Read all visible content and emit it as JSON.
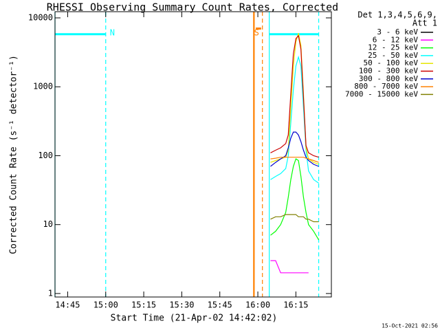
{
  "chart_data": {
    "type": "line",
    "title": "RHESSI Observing Summary Count Rates, Corrected",
    "xlabel": "Start Time (21-Apr-02 14:42:02)",
    "ylabel": "Corrected Count Rate (s⁻¹ detector⁻¹)",
    "legend_title": [
      "Det 1,3,4,5,6,9,",
      "Att 1"
    ],
    "footer": "15-Oct-2021 02:56",
    "log_y": true,
    "xlim": [
      880,
      989
    ],
    "ylim": [
      0.89,
      12300
    ],
    "xticks": [
      {
        "value": 885,
        "label": "14:45"
      },
      {
        "value": 900,
        "label": "15:00"
      },
      {
        "value": 915,
        "label": "15:15"
      },
      {
        "value": 930,
        "label": "15:30"
      },
      {
        "value": 945,
        "label": "15:45"
      },
      {
        "value": 960,
        "label": "16:00"
      },
      {
        "value": 975,
        "label": "16:15"
      }
    ],
    "yticks": [
      1,
      10,
      100,
      1000,
      10000
    ],
    "x": [
      965,
      967,
      969,
      971,
      972,
      973,
      974,
      975,
      976,
      977,
      978,
      979,
      980,
      982,
      984
    ],
    "series": [
      {
        "name": "3 - 6 keV",
        "color": "#000000",
        "values": [
          null,
          null,
          null,
          null,
          null,
          null,
          null,
          null,
          null,
          null,
          null,
          null,
          null,
          null,
          null
        ]
      },
      {
        "name": "6 - 12 keV",
        "color": "#ff00ff",
        "values": [
          3,
          3,
          2,
          2,
          2,
          2,
          2,
          2,
          2,
          2,
          2,
          2,
          2,
          null,
          null
        ]
      },
      {
        "name": "12 - 25 keV",
        "color": "#00ff00",
        "values": [
          7,
          8,
          10,
          15,
          25,
          45,
          70,
          90,
          85,
          50,
          25,
          15,
          10,
          8,
          6
        ]
      },
      {
        "name": "25 - 50 keV",
        "color": "#00ffff",
        "values": [
          45,
          50,
          55,
          65,
          100,
          300,
          900,
          2000,
          2700,
          2000,
          500,
          120,
          60,
          45,
          40
        ]
      },
      {
        "name": "50 - 100 keV",
        "color": "#e6e600",
        "values": [
          80,
          85,
          90,
          95,
          120,
          500,
          2000,
          4500,
          6000,
          4000,
          800,
          130,
          90,
          80,
          75
        ]
      },
      {
        "name": "100 - 300 keV",
        "color": "#cc0000",
        "values": [
          110,
          120,
          130,
          150,
          200,
          800,
          3000,
          5000,
          5500,
          3500,
          700,
          140,
          110,
          100,
          95
        ]
      },
      {
        "name": "300 - 800 keV",
        "color": "#0000cc",
        "values": [
          70,
          80,
          90,
          100,
          130,
          180,
          220,
          220,
          200,
          160,
          120,
          95,
          85,
          75,
          70
        ]
      },
      {
        "name": "800 - 7000 keV",
        "color": "#ff8000",
        "values": [
          90,
          92,
          95,
          95,
          95,
          95,
          95,
          95,
          95,
          95,
          95,
          92,
          90,
          85,
          80
        ]
      },
      {
        "name": "7000 - 15000 keV",
        "color": "#808000",
        "values": [
          12,
          13,
          13,
          14,
          14,
          14,
          14,
          14,
          13,
          13,
          13,
          12,
          12,
          11,
          11
        ]
      }
    ],
    "vlines": [
      {
        "x": 880,
        "color": "#00ffff",
        "dashed": false
      },
      {
        "x": 900,
        "color": "#00ffff",
        "dashed": true,
        "label": "N"
      },
      {
        "x": 958.3,
        "color": "#ff8000",
        "dashed": false
      },
      {
        "x": 958.6,
        "color": "#ff8000",
        "dashed": false
      },
      {
        "x": 961.8,
        "color": "#ff8000",
        "dashed": true,
        "label": "S"
      },
      {
        "x": 964.5,
        "color": "#00ffff",
        "dashed": false
      },
      {
        "x": 984,
        "color": "#00ffff",
        "dashed": true
      }
    ],
    "hlines": [
      {
        "x0": 880,
        "x1": 900,
        "y": 5800,
        "color": "#00ffff"
      },
      {
        "x0": 964.5,
        "x1": 984,
        "y": 5800,
        "color": "#00ffff"
      },
      {
        "x0": 959.2,
        "x1": 961.3,
        "y": 7000,
        "color": "#ff8000"
      }
    ]
  }
}
